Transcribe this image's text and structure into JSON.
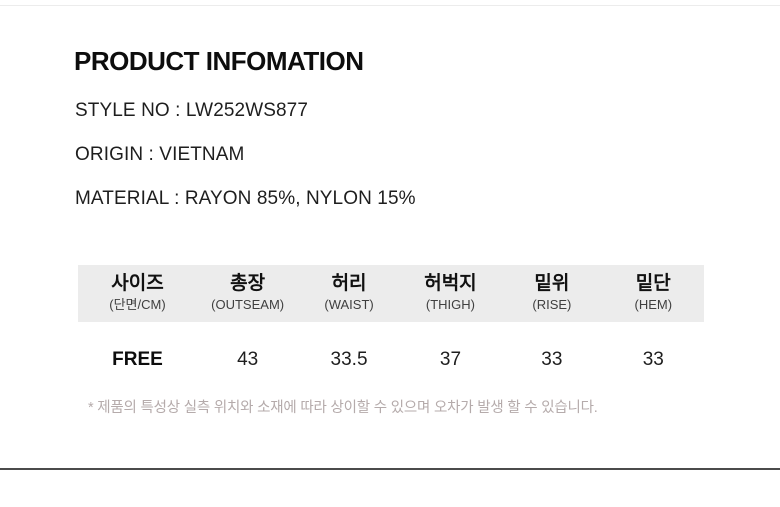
{
  "header": {
    "title": "PRODUCT INFOMATION"
  },
  "product_info": {
    "style_no": "STYLE NO : LW252WS877",
    "origin": "ORIGIN : VIETNAM",
    "material": "MATERIAL : RAYON 85%, NYLON 15%"
  },
  "size_table": {
    "columns": [
      {
        "label": "사이즈",
        "sub": "(단면/CM)"
      },
      {
        "label": "총장",
        "sub": "(OUTSEAM)"
      },
      {
        "label": "허리",
        "sub": "(WAIST)"
      },
      {
        "label": "허벅지",
        "sub": "(THIGH)"
      },
      {
        "label": "밑위",
        "sub": "(RISE)"
      },
      {
        "label": "밑단",
        "sub": "(HEM)"
      }
    ],
    "row": {
      "size": "FREE",
      "outseam": "43",
      "waist": "33.5",
      "thigh": "37",
      "rise": "33",
      "hem": "33"
    }
  },
  "footnote": "* 제품의 특성상 실측 위치와 소재에 따라 상이할 수 있으며 오차가 발생 할 수 있습니다.",
  "colors": {
    "table_header_bg": "#ececec",
    "footnote_text": "#b5abab",
    "bottom_divider": "#4b4b4b",
    "body_text": "#1c1c1c"
  }
}
